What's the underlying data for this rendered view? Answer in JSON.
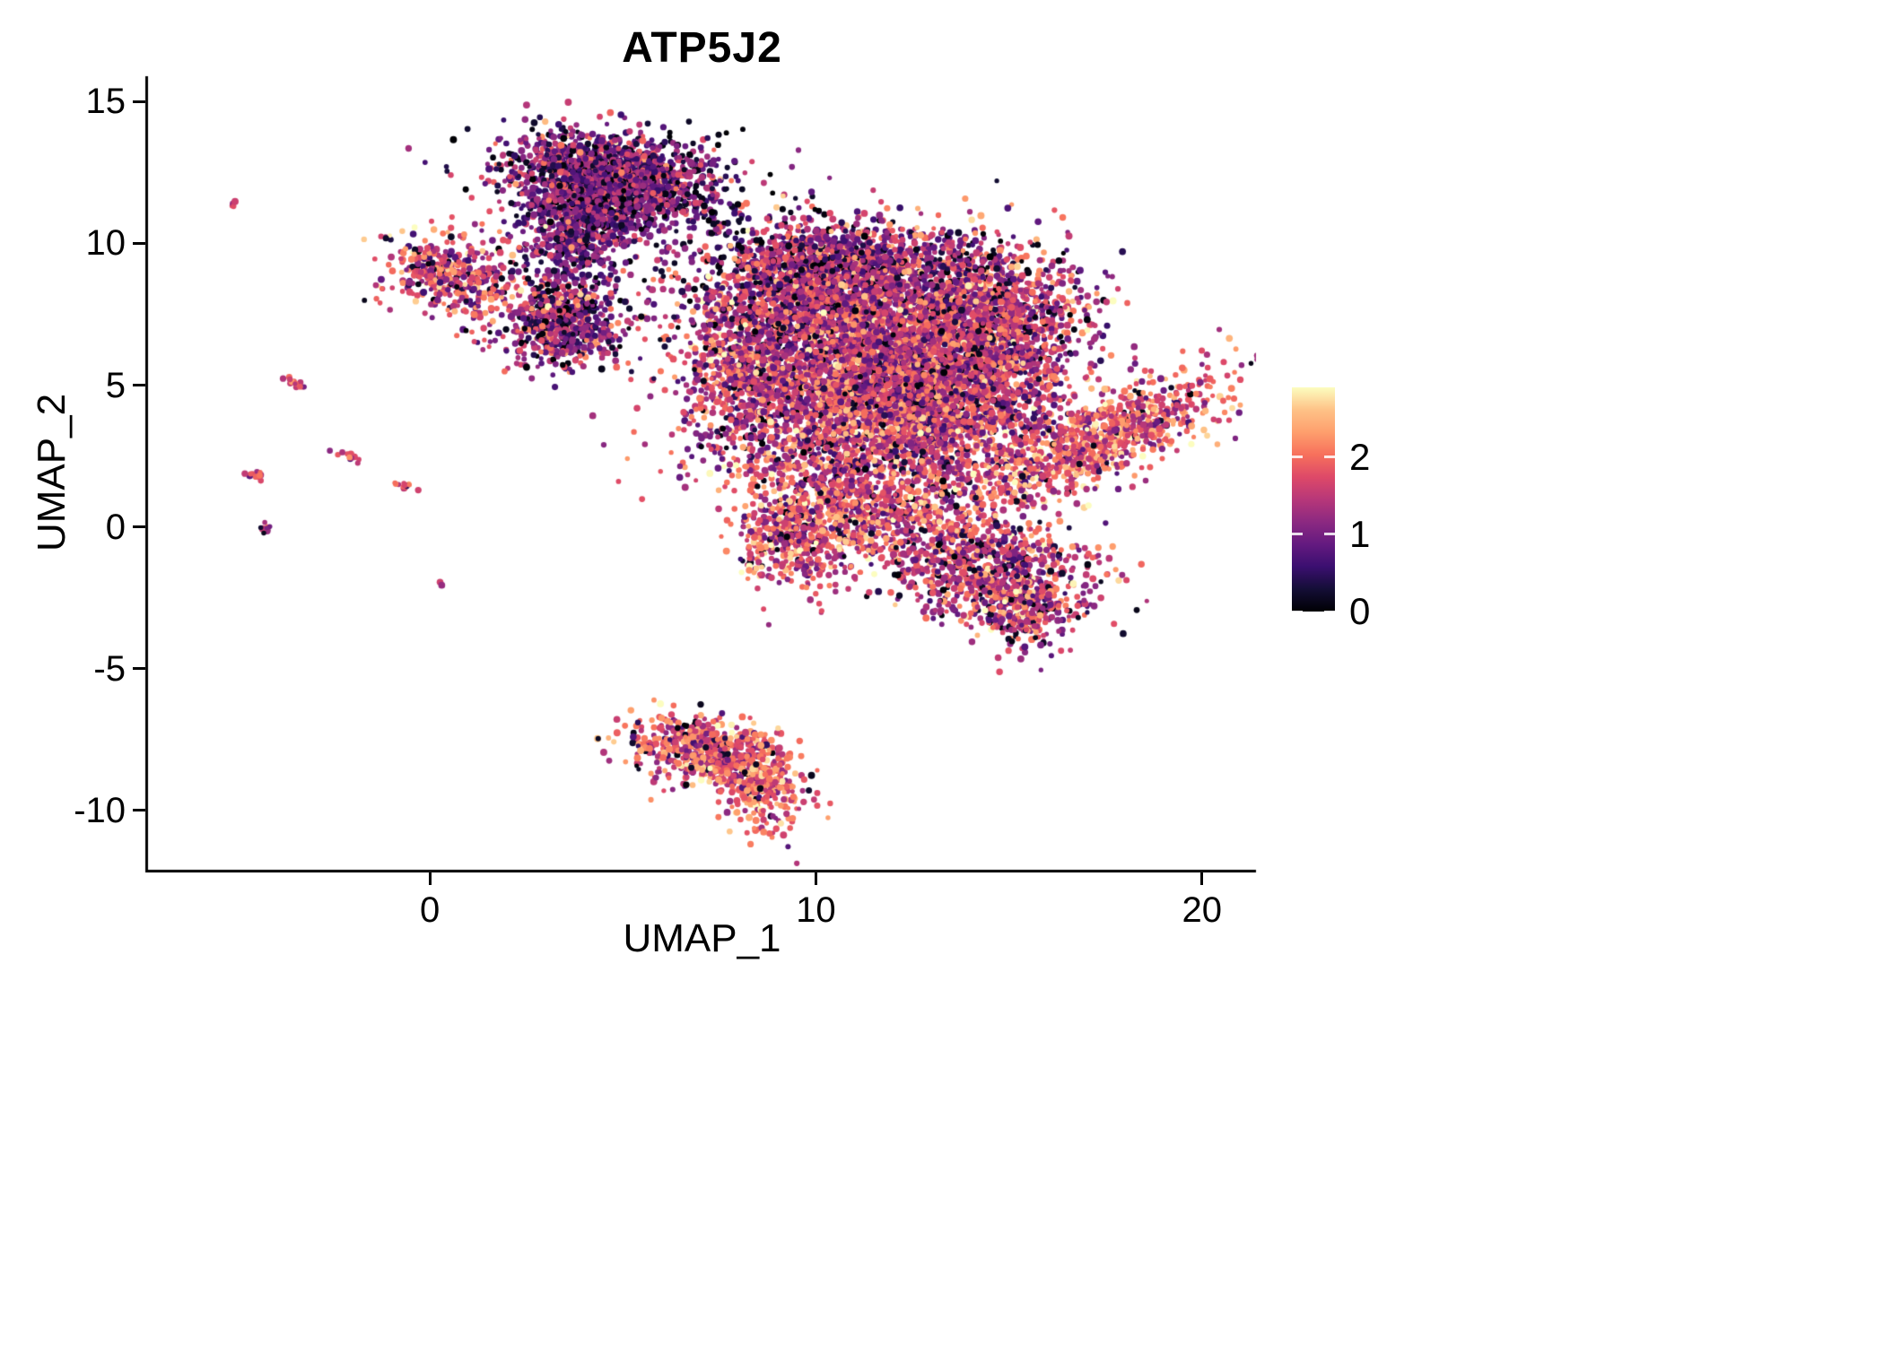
{
  "page": {
    "background": "#ffffff"
  },
  "chart_data": {
    "type": "scatter",
    "title": "ATP5J2",
    "xlabel": "UMAP_1",
    "ylabel": "UMAP_2",
    "xlim": [
      -7.3,
      21.4
    ],
    "ylim": [
      -12.1,
      15.9
    ],
    "x_ticks": [
      0,
      10,
      20
    ],
    "y_ticks": [
      -10,
      -5,
      0,
      5,
      10,
      15
    ],
    "grid": false,
    "legend": {
      "position": "right",
      "min": 0,
      "max": 2.9,
      "ticks": [
        0,
        1,
        2
      ]
    },
    "colormap": [
      "#000004",
      "#140e36",
      "#3b0f70",
      "#641a80",
      "#8c2981",
      "#b73779",
      "#de4968",
      "#f7705c",
      "#fe9f6d",
      "#fec287",
      "#fcfdbf"
    ],
    "point_radius_px": [
      2.5,
      4.0
    ],
    "clusters": [
      {
        "name": "top-cluster-core",
        "cx": 4.6,
        "cy": 12.3,
        "rx": 1.25,
        "ry": 0.75,
        "rot": -8,
        "n": 1700,
        "expr_mean": 1.05,
        "expr_sd": 0.55,
        "zero_frac": 0.08
      },
      {
        "name": "top-cluster-fringe",
        "cx": 4.0,
        "cy": 10.9,
        "rx": 0.9,
        "ry": 0.6,
        "rot": 0,
        "n": 400,
        "expr_mean": 1.0,
        "expr_sd": 0.55,
        "zero_frac": 0.08
      },
      {
        "name": "top-tail",
        "cx": 3.8,
        "cy": 9.6,
        "rx": 0.55,
        "ry": 0.8,
        "rot": 0,
        "n": 260,
        "expr_mean": 1.0,
        "expr_sd": 0.5,
        "zero_frac": 0.06
      },
      {
        "name": "mid-left-blob",
        "cx": 3.4,
        "cy": 7.2,
        "rx": 0.85,
        "ry": 0.75,
        "rot": 0,
        "n": 650,
        "expr_mean": 1.15,
        "expr_sd": 0.6,
        "zero_frac": 0.07
      },
      {
        "name": "left-cluster",
        "cx": 0.6,
        "cy": 8.8,
        "rx": 0.95,
        "ry": 0.7,
        "rot": -20,
        "n": 420,
        "expr_mean": 1.6,
        "expr_sd": 0.6,
        "zero_frac": 0.05
      },
      {
        "name": "bridge-sparse",
        "cx": 6.6,
        "cy": 11.0,
        "rx": 1.3,
        "ry": 1.1,
        "rot": 0,
        "n": 160,
        "expr_mean": 0.8,
        "expr_sd": 0.6,
        "zero_frac": 0.15
      },
      {
        "name": "main-northwest",
        "cx": 9.6,
        "cy": 8.0,
        "rx": 1.5,
        "ry": 1.3,
        "rot": 0,
        "n": 1500,
        "expr_mean": 1.35,
        "expr_sd": 0.6,
        "zero_frac": 0.06
      },
      {
        "name": "main-northeast",
        "cx": 12.5,
        "cy": 7.0,
        "rx": 1.7,
        "ry": 1.5,
        "rot": 0,
        "n": 1900,
        "expr_mean": 1.45,
        "expr_sd": 0.6,
        "zero_frac": 0.05
      },
      {
        "name": "main-center",
        "cx": 10.8,
        "cy": 4.6,
        "rx": 1.9,
        "ry": 1.4,
        "rot": 0,
        "n": 1700,
        "expr_mean": 1.55,
        "expr_sd": 0.6,
        "zero_frac": 0.05
      },
      {
        "name": "main-east",
        "cx": 13.9,
        "cy": 4.8,
        "rx": 1.4,
        "ry": 1.3,
        "rot": 0,
        "n": 1100,
        "expr_mean": 1.5,
        "expr_sd": 0.6,
        "zero_frac": 0.05
      },
      {
        "name": "main-right-arm",
        "cx": 15.0,
        "cy": 7.6,
        "rx": 1.1,
        "ry": 1.1,
        "rot": 0,
        "n": 700,
        "expr_mean": 1.45,
        "expr_sd": 0.6,
        "zero_frac": 0.06
      },
      {
        "name": "main-top-edge",
        "cx": 11.0,
        "cy": 9.5,
        "rx": 1.7,
        "ry": 0.6,
        "rot": 0,
        "n": 500,
        "expr_mean": 1.2,
        "expr_sd": 0.6,
        "zero_frac": 0.08
      },
      {
        "name": "main-west-edge",
        "cx": 8.2,
        "cy": 5.4,
        "rx": 0.7,
        "ry": 1.2,
        "rot": 0,
        "n": 400,
        "expr_mean": 1.55,
        "expr_sd": 0.6,
        "zero_frac": 0.05
      },
      {
        "name": "main-south-fringe",
        "cx": 11.5,
        "cy": 2.5,
        "rx": 2.2,
        "ry": 0.9,
        "rot": 0,
        "n": 700,
        "expr_mean": 1.6,
        "expr_sd": 0.6,
        "zero_frac": 0.05
      },
      {
        "name": "right-band",
        "cx": 17.3,
        "cy": 3.1,
        "rx": 1.85,
        "ry": 0.7,
        "rot": 33,
        "n": 850,
        "expr_mean": 1.85,
        "expr_sd": 0.55,
        "zero_frac": 0.04
      },
      {
        "name": "lower-left-blob",
        "cx": 9.7,
        "cy": -0.2,
        "rx": 0.85,
        "ry": 1.0,
        "rot": 0,
        "n": 550,
        "expr_mean": 1.75,
        "expr_sd": 0.55,
        "zero_frac": 0.05
      },
      {
        "name": "lower-mid",
        "cx": 11.7,
        "cy": 0.4,
        "rx": 1.2,
        "ry": 0.8,
        "rot": 0,
        "n": 450,
        "expr_mean": 1.7,
        "expr_sd": 0.55,
        "zero_frac": 0.05
      },
      {
        "name": "lower-right",
        "cx": 14.5,
        "cy": -1.5,
        "rx": 1.4,
        "ry": 1.0,
        "rot": -15,
        "n": 850,
        "expr_mean": 1.5,
        "expr_sd": 0.6,
        "zero_frac": 0.07
      },
      {
        "name": "lower-right-tail",
        "cx": 15.4,
        "cy": -2.9,
        "rx": 0.5,
        "ry": 0.7,
        "rot": 0,
        "n": 220,
        "expr_mean": 1.45,
        "expr_sd": 0.6,
        "zero_frac": 0.07
      },
      {
        "name": "bottom-cluster-left",
        "cx": 7.1,
        "cy": -7.9,
        "rx": 1.0,
        "ry": 0.6,
        "rot": -15,
        "n": 520,
        "expr_mean": 1.7,
        "expr_sd": 0.55,
        "zero_frac": 0.06
      },
      {
        "name": "bottom-cluster-right",
        "cx": 8.6,
        "cy": -9.0,
        "rx": 0.5,
        "ry": 0.85,
        "rot": 10,
        "n": 320,
        "expr_mean": 1.9,
        "expr_sd": 0.5,
        "zero_frac": 0.04
      },
      {
        "name": "streak-a",
        "cx": -5.1,
        "cy": 11.4,
        "rx": 0.07,
        "ry": 0.07,
        "rot": 0,
        "n": 4,
        "expr_mean": 1.8,
        "expr_sd": 0.3,
        "zero_frac": 0
      },
      {
        "name": "streak-b",
        "cx": -3.45,
        "cy": 5.1,
        "rx": 0.2,
        "ry": 0.08,
        "rot": -35,
        "n": 14,
        "expr_mean": 1.5,
        "expr_sd": 0.4,
        "zero_frac": 0
      },
      {
        "name": "streak-c",
        "cx": -2.15,
        "cy": 2.5,
        "rx": 0.16,
        "ry": 0.08,
        "rot": -35,
        "n": 11,
        "expr_mean": 1.6,
        "expr_sd": 0.4,
        "zero_frac": 0
      },
      {
        "name": "streak-d",
        "cx": -4.45,
        "cy": 1.8,
        "rx": 0.2,
        "ry": 0.08,
        "rot": -35,
        "n": 13,
        "expr_mean": 1.8,
        "expr_sd": 0.4,
        "zero_frac": 0
      },
      {
        "name": "streak-e",
        "cx": -4.3,
        "cy": -0.05,
        "rx": 0.07,
        "ry": 0.12,
        "rot": 0,
        "n": 9,
        "expr_mean": 0.9,
        "expr_sd": 0.4,
        "zero_frac": 0.1
      },
      {
        "name": "streak-f",
        "cx": -0.7,
        "cy": 1.5,
        "rx": 0.22,
        "ry": 0.08,
        "rot": -30,
        "n": 13,
        "expr_mean": 1.7,
        "expr_sd": 0.4,
        "zero_frac": 0
      },
      {
        "name": "dot-g",
        "cx": 0.3,
        "cy": -2.0,
        "rx": 0.05,
        "ry": 0.05,
        "rot": 0,
        "n": 2,
        "expr_mean": 1.4,
        "expr_sd": 0.2,
        "zero_frac": 0
      }
    ]
  }
}
